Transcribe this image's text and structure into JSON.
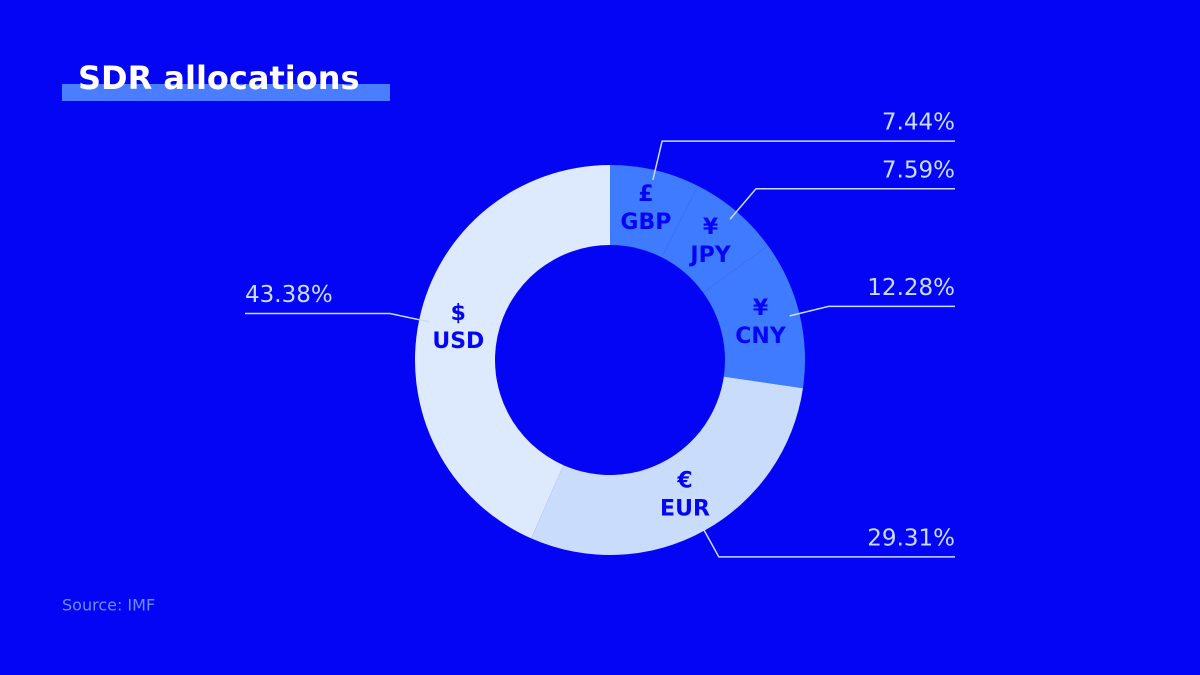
{
  "chart_data": {
    "type": "pie",
    "title": "SDR allocations",
    "source": "Source: IMF",
    "categories": [
      "GBP",
      "JPY",
      "CNY",
      "EUR",
      "USD"
    ],
    "symbols": [
      "£",
      "¥",
      "¥",
      "€",
      "$"
    ],
    "values": [
      7.44,
      7.59,
      12.28,
      29.31,
      43.38
    ],
    "value_labels": [
      "7.44%",
      "7.59%",
      "12.28%",
      "29.31%",
      "43.38%"
    ],
    "colors": [
      "#3f7bff",
      "#3f7bff",
      "#3f7bff",
      "#c9dcfb",
      "#dde9fc"
    ],
    "start_angle": 0,
    "direction": "clockwise",
    "hole": true
  }
}
